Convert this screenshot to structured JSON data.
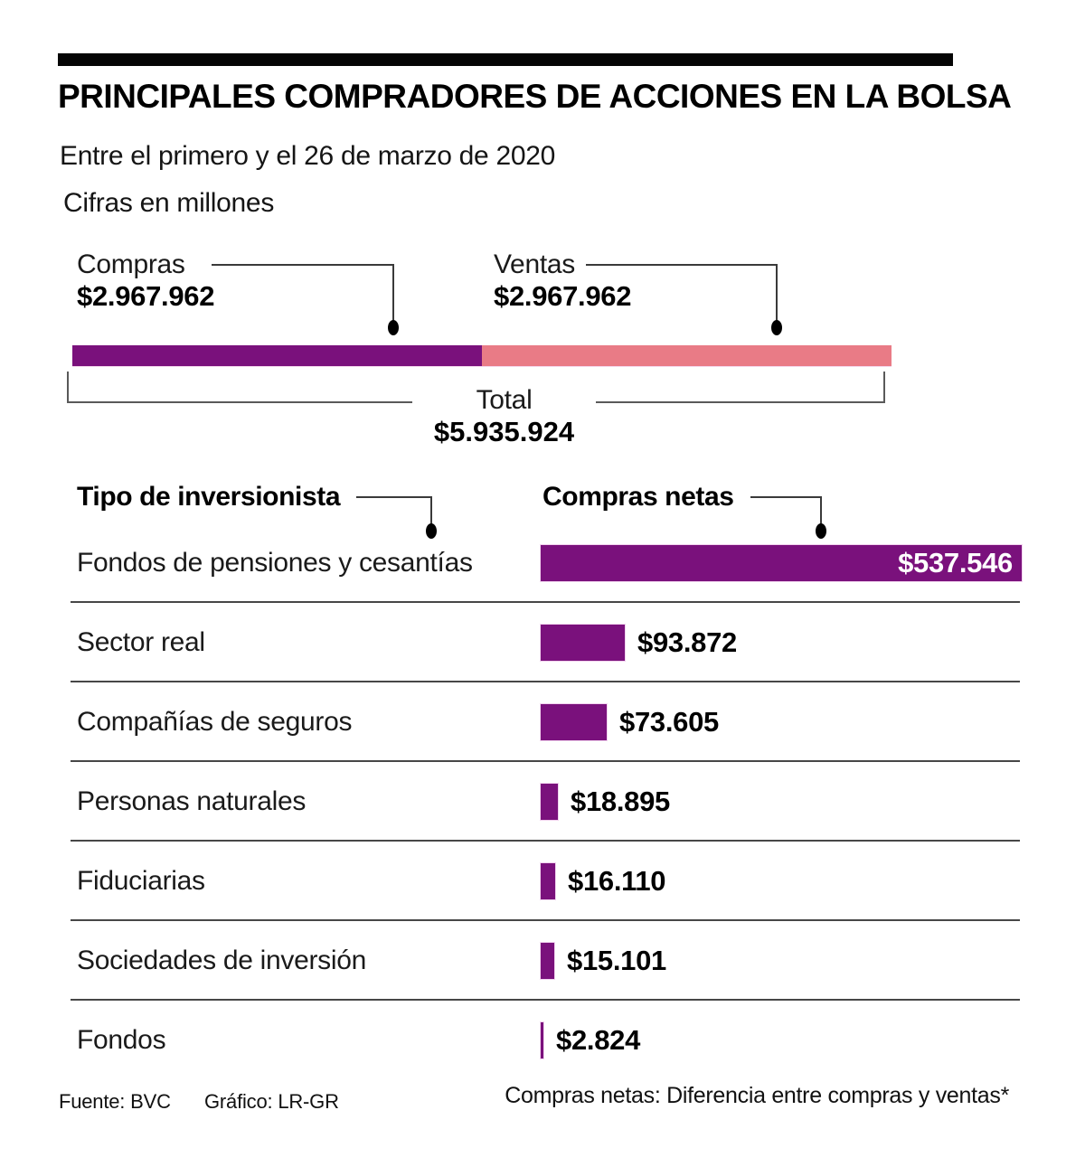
{
  "header": {
    "title": "PRINCIPALES COMPRADORES DE ACCIONES EN LA BOLSA",
    "subtitle": "Entre el primero y el 26 de marzo de 2020",
    "units_note": "Cifras en millones"
  },
  "totals": {
    "compras": {
      "label": "Compras",
      "value": "$2.967.962",
      "amount": 2967962
    },
    "ventas": {
      "label": "Ventas",
      "value": "$2.967.962",
      "amount": 2967962
    },
    "total": {
      "label": "Total",
      "value": "$5.935.924",
      "amount": 5935924
    }
  },
  "table": {
    "type_header": "Tipo de inversionista",
    "value_header": "Compras netas",
    "rows": [
      {
        "label": "Fondos de pensiones y cesantías",
        "value": "$537.546",
        "amount": 537546,
        "value_inside": true
      },
      {
        "label": "Sector real",
        "value": "$93.872",
        "amount": 93872
      },
      {
        "label": "Compañías de seguros",
        "value": "$73.605",
        "amount": 73605
      },
      {
        "label": "Personas naturales",
        "value": "$18.895",
        "amount": 18895
      },
      {
        "label": "Fiduciarias",
        "value": "$16.110",
        "amount": 16110
      },
      {
        "label": "Sociedades de inversión",
        "value": "$15.101",
        "amount": 15101
      },
      {
        "label": "Fondos",
        "value": "$2.824",
        "amount": 2824
      }
    ]
  },
  "footer": {
    "source": "Fuente: BVC",
    "credit": "Gráfico: LR-GR",
    "note": "Compras netas: Diferencia entre compras y ventas*"
  },
  "colors": {
    "purple": "#7A117C",
    "pink": "#E97B86",
    "bar_border": "#F2D3EF"
  },
  "chart_data": {
    "type": "bar",
    "orientation": "horizontal",
    "title": "PRINCIPALES COMPRADORES DE ACCIONES EN LA BOLSA",
    "subtitle": "Entre el primero y el 26 de marzo de 2020",
    "units": "Cifras en millones",
    "stacked_totals_bar": {
      "segments": [
        {
          "name": "Compras",
          "value": 2967962,
          "color": "#7A117C"
        },
        {
          "name": "Ventas",
          "value": 2967962,
          "color": "#E97B86"
        }
      ],
      "total": 5935924,
      "total_label": "Total $5.935.924"
    },
    "series_name": "Compras netas",
    "categories": [
      "Fondos de pensiones y cesantías",
      "Sector real",
      "Compañías de seguros",
      "Personas naturales",
      "Fiduciarias",
      "Sociedades de inversión",
      "Fondos"
    ],
    "values": [
      537546,
      93872,
      73605,
      18895,
      16110,
      15101,
      2824
    ],
    "value_labels": [
      "$537.546",
      "$93.872",
      "$73.605",
      "$18.895",
      "$16.110",
      "$15.101",
      "$2.824"
    ],
    "xlim": [
      0,
      537546
    ],
    "grid": false,
    "legend": false,
    "note": "Compras netas: Diferencia entre compras y ventas*"
  }
}
